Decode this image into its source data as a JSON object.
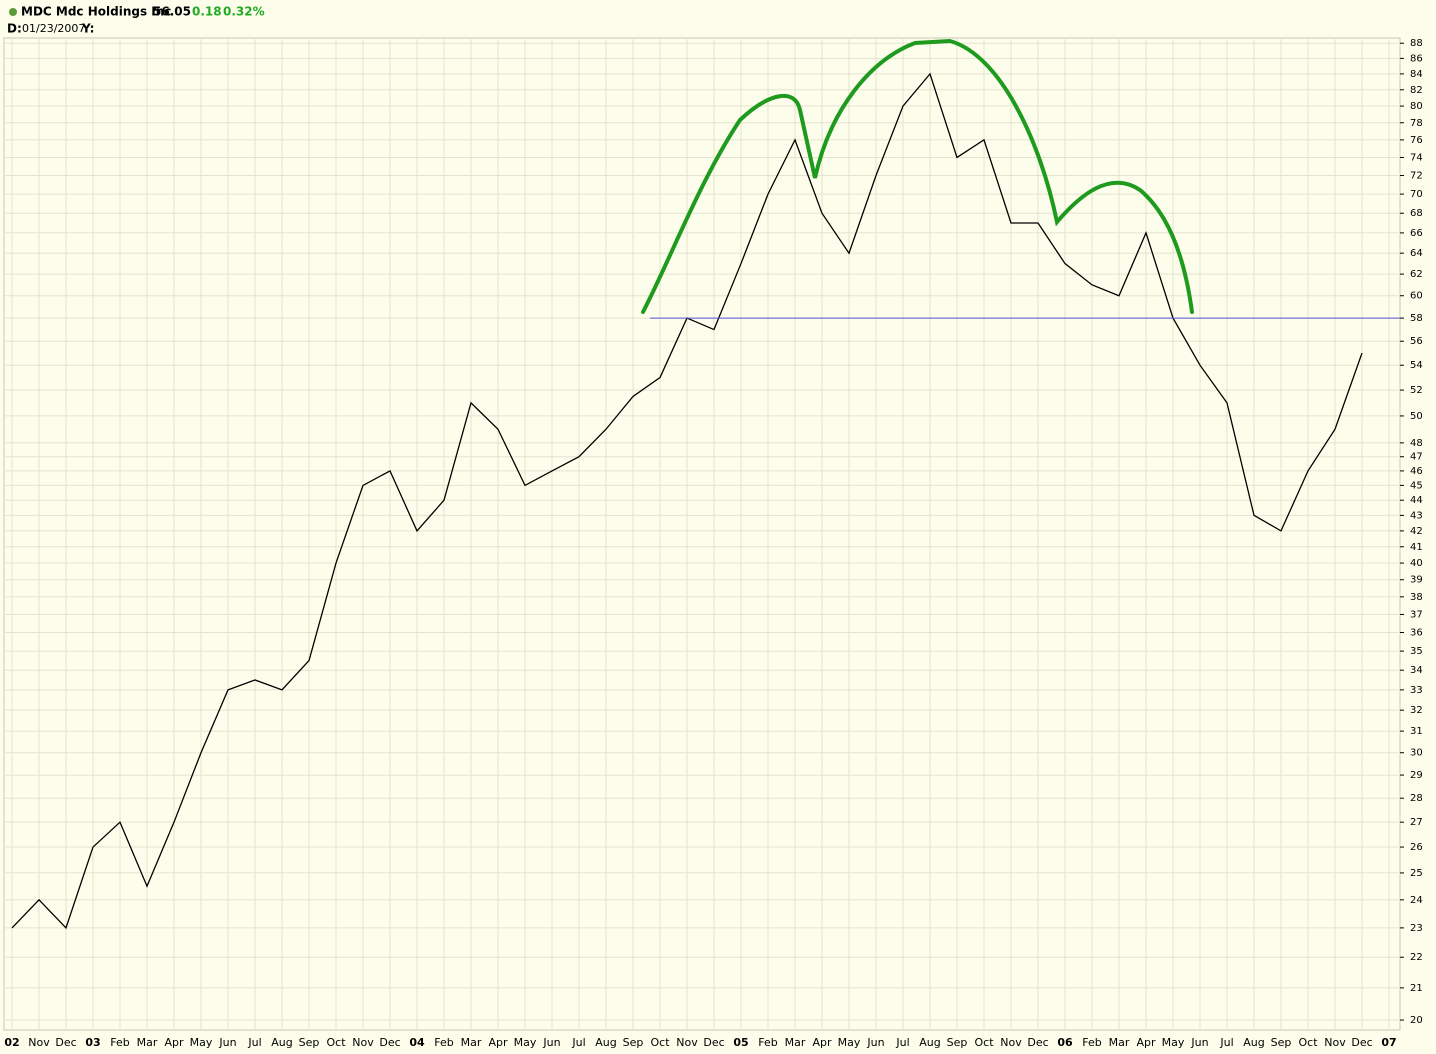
{
  "header": {
    "symbol": "MDC Mdc Holdings Inc",
    "price": "56.05",
    "change": "0.18",
    "change_pct": "0.32%",
    "date_label": "D:",
    "date": "01/23/2007",
    "y_label": "Y:"
  },
  "chart_data": {
    "type": "line",
    "log_scale": true,
    "grid": true,
    "color": "#000000",
    "categories": [
      "02",
      "Nov",
      "Dec",
      "03",
      "Feb",
      "Mar",
      "Apr",
      "May",
      "Jun",
      "Jul",
      "Aug",
      "Sep",
      "Oct",
      "Nov",
      "Dec",
      "04",
      "Feb",
      "Mar",
      "Apr",
      "May",
      "Jun",
      "Jul",
      "Aug",
      "Sep",
      "Oct",
      "Nov",
      "Dec",
      "05",
      "Feb",
      "Mar",
      "Apr",
      "May",
      "Jun",
      "Jul",
      "Aug",
      "Sep",
      "Oct",
      "Nov",
      "Dec",
      "06",
      "Feb",
      "Mar",
      "Apr",
      "May",
      "Jun",
      "Jul",
      "Aug",
      "Sep",
      "Oct",
      "Nov",
      "Dec",
      "07"
    ],
    "values": [
      23,
      24,
      23,
      26,
      27,
      24.5,
      27,
      30,
      33,
      33.5,
      33,
      34.5,
      40,
      45,
      46,
      42,
      44,
      51,
      49,
      45,
      46,
      47,
      49,
      51.5,
      53,
      58,
      57,
      63,
      70,
      76,
      68,
      64,
      72,
      80,
      84,
      74,
      76,
      67,
      67,
      63,
      61,
      60,
      66,
      58,
      54,
      51,
      43,
      42,
      46,
      49,
      55,
      null
    ],
    "ylim": [
      19.7,
      88.7
    ],
    "yticks": [
      20,
      21,
      22,
      23,
      24,
      25,
      26,
      27,
      28,
      29,
      30,
      31,
      32,
      33,
      34,
      35,
      36,
      37,
      38,
      39,
      40,
      41,
      42,
      43,
      44,
      45,
      46,
      47,
      48,
      50,
      52,
      54,
      56,
      58,
      60,
      62,
      64,
      66,
      68,
      70,
      72,
      74,
      76,
      78,
      80,
      82,
      84,
      86,
      88
    ],
    "hline": 58,
    "hline_color": "#5555dd"
  }
}
